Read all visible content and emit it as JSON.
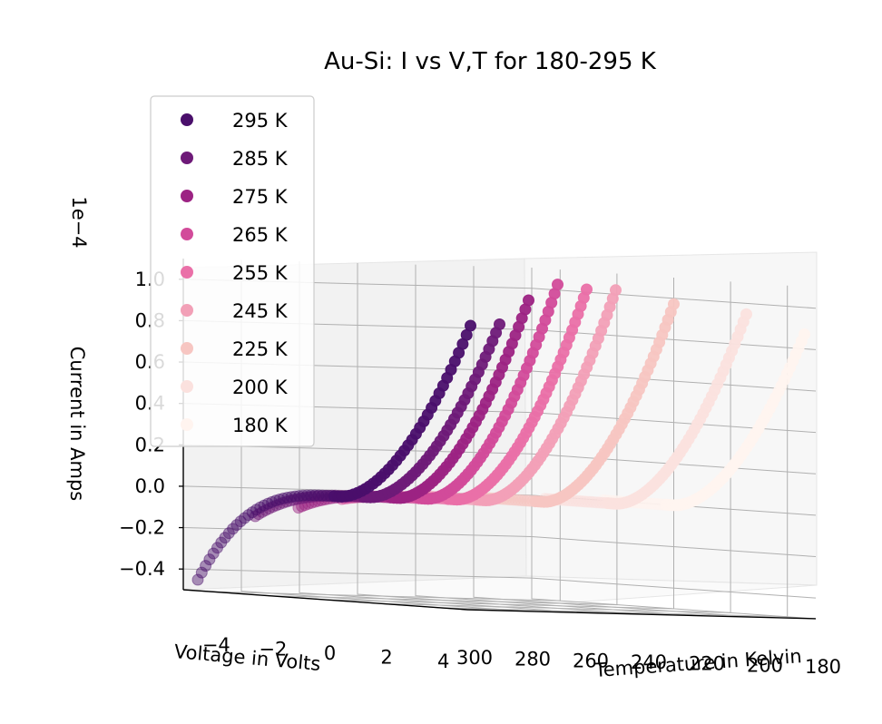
{
  "chart_data": {
    "type": "scatter",
    "title": "Au-Si: I vs V,T for 180-295 K",
    "xlabel": "Voltage in Volts",
    "ylabel": "Temperature in Kelvin",
    "zlabel": "Current in Amps",
    "z_offset_label": "1e−4",
    "x_ticks": [
      "−4",
      "−2",
      "0",
      "2",
      "4"
    ],
    "y_ticks": [
      "300",
      "280",
      "260",
      "240",
      "220",
      "200",
      "180"
    ],
    "z_ticks": [
      "−0.4",
      "−0.2",
      "0.0",
      "0.2",
      "0.4",
      "0.6",
      "0.8",
      "1.0"
    ],
    "xlim": [
      -5,
      5
    ],
    "ylim": [
      180,
      300
    ],
    "zlim": [
      -0.5,
      1.1
    ],
    "grid": true,
    "legend_position": "upper-left",
    "series": [
      {
        "name": "295 K",
        "temperature": 295,
        "color": "#4a0f6b",
        "v_min": -5.0,
        "i_min": -0.45,
        "i_max": 0.87
      },
      {
        "name": "285 K",
        "temperature": 285,
        "color": "#6e1a78",
        "v_min": -4.0,
        "i_min": -0.13,
        "i_max": 0.88
      },
      {
        "name": "275 K",
        "temperature": 275,
        "color": "#9c2383",
        "v_min": -3.5,
        "i_min": -0.08,
        "i_max": 1.0
      },
      {
        "name": "265 K",
        "temperature": 265,
        "color": "#d24b9a",
        "v_min": -3.0,
        "i_min": -0.03,
        "i_max": 1.08
      },
      {
        "name": "255 K",
        "temperature": 255,
        "color": "#ea70a8",
        "v_min": -2.5,
        "i_min": -0.01,
        "i_max": 1.06
      },
      {
        "name": "245 K",
        "temperature": 245,
        "color": "#f2a0b7",
        "v_min": -2.5,
        "i_min": 0.0,
        "i_max": 1.06
      },
      {
        "name": "225 K",
        "temperature": 225,
        "color": "#f7c6c2",
        "v_min": -2.5,
        "i_min": 0.0,
        "i_max": 1.0
      },
      {
        "name": "200 K",
        "temperature": 200,
        "color": "#fbe1de",
        "v_min": -2.5,
        "i_min": 0.0,
        "i_max": 0.96
      },
      {
        "name": "180 K",
        "temperature": 180,
        "color": "#fff4ef",
        "v_min": -2.5,
        "i_min": 0.0,
        "i_max": 0.87
      }
    ]
  }
}
